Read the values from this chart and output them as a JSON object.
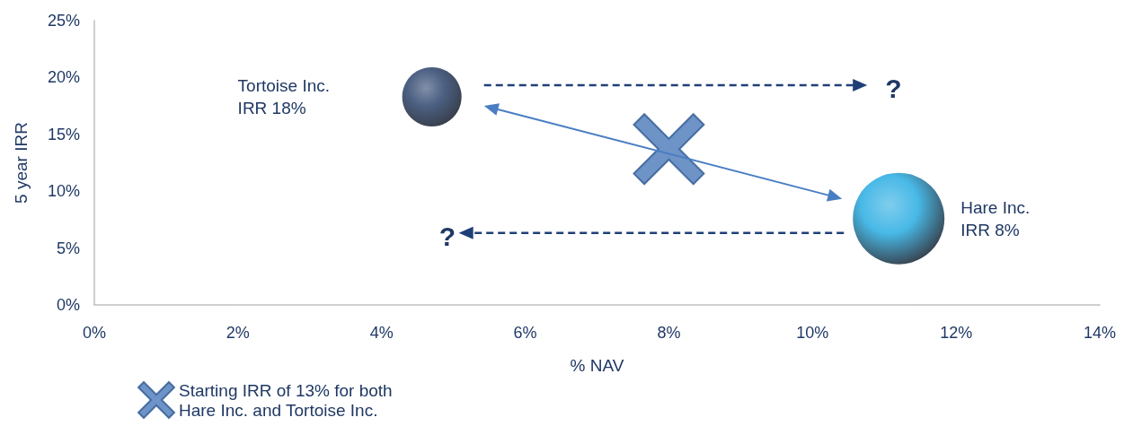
{
  "chart_data": {
    "type": "bubble",
    "xlabel": "% NAV",
    "ylabel": "5 year IRR",
    "xlim": [
      0,
      14
    ],
    "xticks": [
      {
        "value": 0,
        "label": "0%"
      },
      {
        "value": 2,
        "label": "2%"
      },
      {
        "value": 4,
        "label": "4%"
      },
      {
        "value": 6,
        "label": "6%"
      },
      {
        "value": 8,
        "label": "8%"
      },
      {
        "value": 10,
        "label": "10%"
      },
      {
        "value": 12,
        "label": "12%"
      },
      {
        "value": 14,
        "label": "14%"
      }
    ],
    "ylim": [
      0,
      25
    ],
    "yticks": [
      {
        "value": 0,
        "label": "0%"
      },
      {
        "value": 5,
        "label": "5%"
      },
      {
        "value": 10,
        "label": "10%"
      },
      {
        "value": 15,
        "label": "15%"
      },
      {
        "value": 20,
        "label": "20%"
      },
      {
        "value": 25,
        "label": "25%"
      }
    ],
    "series": [
      {
        "color": "#1f3864",
        "x": [
          4.7
        ],
        "values": [
          18.3
        ],
        "sizes": [
          0.42
        ]
      },
      {
        "color": "#1aa7e0",
        "x": [
          11.2
        ],
        "values": [
          7.6
        ],
        "sizes": [
          1
        ]
      },
      {
        "type": "scatter",
        "name": "Starting IRR of 13% for both Hare Inc. and Tortoise Inc.",
        "color": "#4a78b8",
        "marker": "cross",
        "x": [
          8.0
        ],
        "values": [
          13.7
        ]
      }
    ],
    "annotations": [
      "Tortoise Inc.\nIRR 18%",
      "Hare Inc.\nIRR 8%",
      "?",
      "?"
    ],
    "grid": false,
    "legend": "bottom left"
  }
}
